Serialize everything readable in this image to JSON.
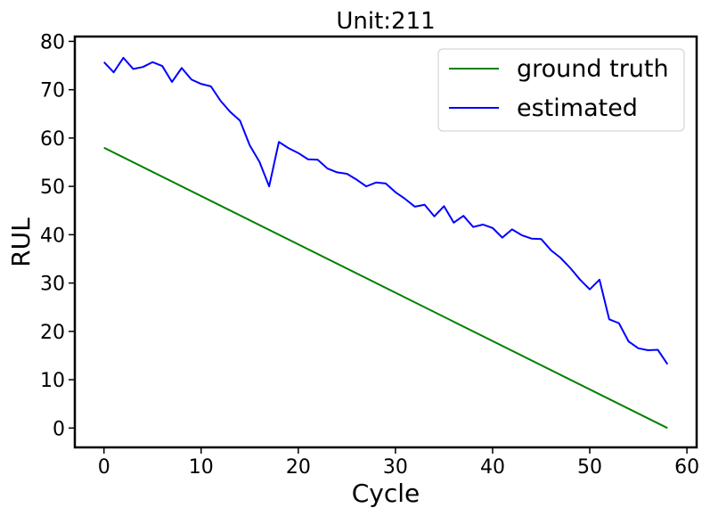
{
  "chart_data": {
    "type": "line",
    "title": "Unit:211",
    "xlabel": "Cycle",
    "ylabel": "RUL",
    "xlim": [
      -3,
      61
    ],
    "ylim": [
      -4,
      81
    ],
    "xticks": [
      0,
      10,
      20,
      30,
      40,
      50,
      60
    ],
    "yticks": [
      0,
      10,
      20,
      30,
      40,
      50,
      60,
      70,
      80
    ],
    "grid": false,
    "legend": "top-right",
    "series": [
      {
        "name": "ground truth",
        "color": "#008000",
        "x": [
          0,
          58
        ],
        "values": [
          58,
          0
        ]
      },
      {
        "name": "estimated",
        "color": "#0000ff",
        "x": [
          0,
          1,
          2,
          3,
          4,
          5,
          6,
          7,
          8,
          9,
          10,
          11,
          12,
          13,
          14,
          15,
          16,
          17,
          18,
          19,
          20,
          21,
          22,
          23,
          24,
          25,
          26,
          27,
          28,
          29,
          30,
          31,
          32,
          33,
          34,
          35,
          36,
          37,
          38,
          39,
          40,
          41,
          42,
          43,
          44,
          45,
          46,
          47,
          48,
          49,
          50,
          51,
          52,
          53,
          54,
          55,
          56,
          57,
          58
        ],
        "values": [
          75.7,
          73.6,
          76.6,
          74.3,
          74.7,
          75.7,
          74.9,
          71.6,
          74.5,
          72.1,
          71.2,
          70.7,
          67.7,
          65.4,
          63.6,
          58.5,
          55.1,
          50.0,
          59.2,
          57.9,
          56.9,
          55.6,
          55.5,
          53.7,
          52.9,
          52.6,
          51.4,
          50.0,
          50.8,
          50.6,
          48.8,
          47.4,
          45.8,
          46.2,
          43.8,
          45.9,
          42.5,
          43.9,
          41.6,
          42.1,
          41.4,
          39.4,
          41.1,
          39.9,
          39.2,
          39.1,
          36.8,
          35.2,
          33.1,
          30.7,
          28.7,
          30.7,
          22.5,
          21.7,
          17.9,
          16.5,
          16.1,
          16.2,
          13.2
        ]
      }
    ]
  }
}
